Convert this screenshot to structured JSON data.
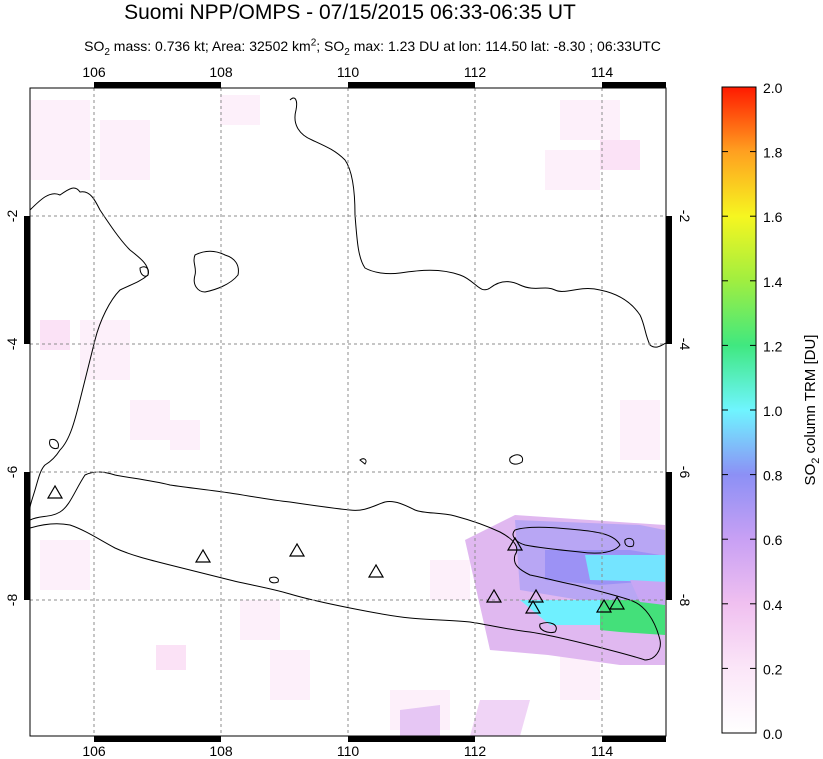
{
  "title": "Suomi NPP/OMPS - 07/15/2015 06:33-06:35 UT",
  "subtitle": {
    "so2_mass": "SO2 mass: 0.736 kt",
    "area": "Area: 32502 km2",
    "so2_max": "SO2 max: 1.23 DU at lon: 114.50 lat: -8.30",
    "time": "06:33UTC"
  },
  "map": {
    "lon_ticks": [
      "106",
      "108",
      "110",
      "112",
      "114"
    ],
    "lat_ticks": [
      "-2",
      "-4",
      "-6",
      "-8"
    ],
    "lon_range": [
      105,
      115
    ],
    "lat_range": [
      -10,
      0
    ],
    "grid": true,
    "volcano_marker": "triangle-icon"
  },
  "colorbar": {
    "label": "SO2 column TRM [DU]",
    "ticks": [
      "2.0",
      "1.8",
      "1.6",
      "1.4",
      "1.2",
      "1.0",
      "0.8",
      "0.6",
      "0.4",
      "0.2",
      "0.0"
    ],
    "range": [
      0.0,
      2.0
    ],
    "colors": [
      "#ffffff",
      "#f5c8f0",
      "#c9a0f0",
      "#8c8cf5",
      "#6ff0ff",
      "#44e07a",
      "#a8f040",
      "#f5f520",
      "#ffb020",
      "#ff5010",
      "#ff1a00"
    ]
  }
}
